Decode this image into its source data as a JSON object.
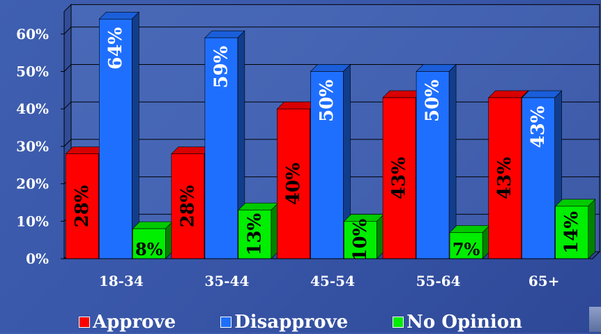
{
  "chart_data": {
    "type": "bar",
    "categories": [
      "18-34",
      "35-44",
      "45-54",
      "55-64",
      "65+"
    ],
    "series": [
      {
        "name": "Approve",
        "values": [
          28,
          28,
          40,
          43,
          43
        ],
        "labels": [
          "28%",
          "28%",
          "40%",
          "43%",
          "43%"
        ]
      },
      {
        "name": "Disapprove",
        "values": [
          64,
          59,
          50,
          50,
          43
        ],
        "labels": [
          "64%",
          "59%",
          "50%",
          "50%",
          "43%"
        ]
      },
      {
        "name": "No Opinion",
        "values": [
          8,
          13,
          10,
          7,
          14
        ],
        "labels": [
          "8%",
          "13%",
          "10%",
          "7%",
          "14%"
        ]
      }
    ],
    "yticks": [
      "0%",
      "10%",
      "20%",
      "30%",
      "40%",
      "50%",
      "60%"
    ],
    "ylim": [
      0,
      66
    ],
    "grid": true,
    "legend_position": "bottom",
    "style": "3d-clustered-column",
    "colors": {
      "Approve": "#ff0000",
      "Disapprove": "#1f6fff",
      "No Opinion": "#00ee00"
    }
  }
}
